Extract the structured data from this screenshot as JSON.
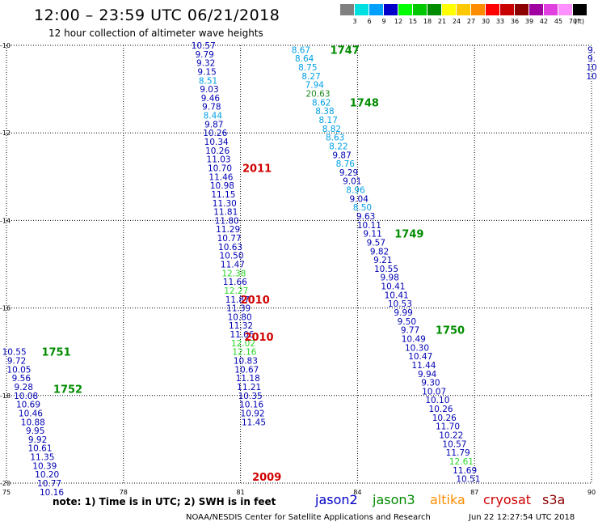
{
  "header": {
    "title": "12:00 – 23:59 UTC 06/21/2018",
    "subtitle": "12 hour collection of altimeter wave heights"
  },
  "scale": {
    "unit_label": "(ft)",
    "items": [
      {
        "label": "3",
        "color": "#808080"
      },
      {
        "label": "6",
        "color": "#00e0e0"
      },
      {
        "label": "9",
        "color": "#00a0ff"
      },
      {
        "label": "12",
        "color": "#0000c8"
      },
      {
        "label": "15",
        "color": "#00ff00"
      },
      {
        "label": "18",
        "color": "#00c800"
      },
      {
        "label": "21",
        "color": "#008c00"
      },
      {
        "label": "24",
        "color": "#ffff00"
      },
      {
        "label": "27",
        "color": "#ffc800"
      },
      {
        "label": "30",
        "color": "#ff8c00"
      },
      {
        "label": "33",
        "color": "#ff0000"
      },
      {
        "label": "36",
        "color": "#c80000"
      },
      {
        "label": "39",
        "color": "#8c0000"
      },
      {
        "label": "42",
        "color": "#a000a0"
      },
      {
        "label": "45",
        "color": "#e040e0"
      },
      {
        "label": "70",
        "color": "#ff90ff"
      },
      {
        "label": "",
        "color": "#000000"
      }
    ]
  },
  "chart_data": {
    "type": "scatter",
    "x_ticks": [
      "75",
      "78",
      "81",
      "84",
      "87",
      "90"
    ],
    "y_ticks": [
      "-10",
      "-12",
      "-14",
      "-16",
      "-18",
      "-20"
    ],
    "xlim": [
      75,
      90
    ],
    "ylim": [
      -20,
      -10
    ],
    "grid": true,
    "value_colors": {
      "dark": "#0000b4",
      "light": "#00a0e6",
      "green": "#2bd62b",
      "olive": "#228b22"
    },
    "tracks": [
      {
        "satellite": "jason2",
        "lon0": 80.05,
        "lat0": -10.0,
        "dlon": 0.03,
        "dlat": -0.2,
        "values": [
          "10.57",
          "9.79",
          "9.32",
          "9.15",
          "8.51",
          "9.03",
          "9.46",
          "9.78",
          "8.44",
          "9.87",
          "10.26",
          "10.34",
          "10.26",
          "11.03",
          "10.70",
          "11.46",
          "10.98",
          "11.15",
          "11.30",
          "11.81",
          "11.80",
          "11.29",
          "10.77",
          "10.63",
          "10.50",
          "11.47",
          "12.38",
          "11.66",
          "12.27",
          "11.87",
          "11.39",
          "10.80",
          "11.32",
          "11.06",
          "12.02",
          "12.16",
          "10.83",
          "10.67",
          "11.18",
          "11.21",
          "10.35",
          "10.16",
          "10.92",
          "11.45"
        ]
      },
      {
        "satellite": "jason2",
        "lon0": 82.55,
        "lat0": -10.1,
        "dlon": 0.0875,
        "dlat": -0.2,
        "values": [
          "8.67",
          "8.64",
          "8.75",
          "8.27",
          "7.94",
          "20.63",
          "8.62",
          "8.38",
          "8.17",
          "8.82",
          "8.63",
          "8.22",
          "9.87",
          "8.76",
          "9.29",
          "9.01",
          "8.96",
          "9.04",
          "8.50",
          "9.63",
          "10.11",
          "9.11",
          "9.57",
          "9.82",
          "9.21",
          "10.55",
          "9.98",
          "10.41",
          "10.41",
          "10.53",
          "9.99",
          "9.50",
          "9.77",
          "10.49",
          "10.30",
          "10.47",
          "11.44",
          "9.94",
          "9.30",
          "10.07",
          "10.10",
          "10.26",
          "10.26",
          "11.70",
          "10.22",
          "10.57",
          "11.79",
          "12.61",
          "11.69",
          "10.51"
        ]
      },
      {
        "satellite": "jason2",
        "lon0": 75.2,
        "lat0": -17.0,
        "dlon": 0.06,
        "dlat": -0.2,
        "values": [
          "10.55",
          "9.72",
          "10.05",
          "9.56",
          "9.28",
          "10.08",
          "10.69",
          "10.46",
          "10.88",
          "9.95",
          "9.92",
          "10.61",
          "11.35",
          "10.39",
          "10.20",
          "10.77",
          "10.16"
        ]
      },
      {
        "satellite": "jason2",
        "lon0": 90.0,
        "lat0": -10.1,
        "dlon": 0.0,
        "dlat": -0.2,
        "values": [
          "9.",
          "9.",
          "10",
          "10"
        ]
      }
    ],
    "pass_labels": [
      {
        "text": "1747",
        "satellite": "jason3",
        "lon": 83.3,
        "lat": -10.1
      },
      {
        "text": "1748",
        "satellite": "jason3",
        "lon": 83.8,
        "lat": -11.3
      },
      {
        "text": "2011",
        "satellite": "cryosat",
        "lon": 81.05,
        "lat": -12.8
      },
      {
        "text": "1749",
        "satellite": "jason3",
        "lon": 84.95,
        "lat": -14.3
      },
      {
        "text": "2010",
        "satellite": "cryosat",
        "lon": 81.0,
        "lat": -15.8
      },
      {
        "text": "2010",
        "satellite": "cryosat",
        "lon": 81.1,
        "lat": -16.65
      },
      {
        "text": "1751",
        "satellite": "jason3",
        "lon": 75.9,
        "lat": -17.0
      },
      {
        "text": "1750",
        "satellite": "jason3",
        "lon": 86.0,
        "lat": -16.5
      },
      {
        "text": "1752",
        "satellite": "jason3",
        "lon": 76.2,
        "lat": -17.85
      },
      {
        "text": "2009",
        "satellite": "cryosat",
        "lon": 81.3,
        "lat": -19.85
      }
    ]
  },
  "footer": {
    "note": "note:  1) Time is in UTC;  2) SWH is in feet",
    "legend": [
      {
        "name": "jason2",
        "color": "#0000c8"
      },
      {
        "name": "jason3",
        "color": "#008c00"
      },
      {
        "name": "altika",
        "color": "#ff8c00"
      },
      {
        "name": "cryosat",
        "color": "#d00000"
      },
      {
        "name": "s3a",
        "color": "#8c0000"
      }
    ],
    "credit": "NOAA/NESDIS Center for Satellite Applications and Research",
    "timestamp": "Jun 22 12:27:54 UTC 2018"
  }
}
